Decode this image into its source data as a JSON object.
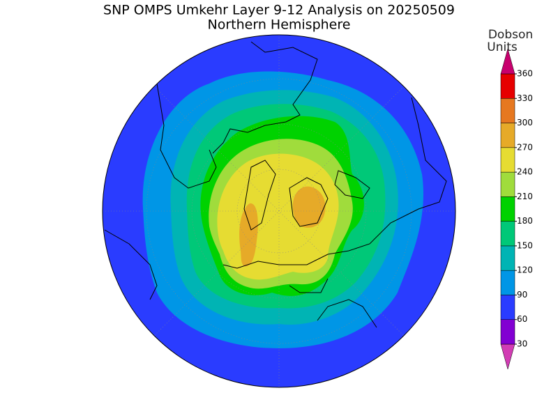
{
  "title": "SNP OMPS Umkehr Layer 9-12 Analysis on 20250509",
  "subtitle": "Northern Hemisphere",
  "colorbar": {
    "label_line1": "Dobson",
    "label_line2": "Units",
    "ticks": [
      30,
      60,
      90,
      120,
      150,
      180,
      210,
      240,
      270,
      300,
      330,
      360
    ],
    "colors": [
      "#d23cb4",
      "#8200d2",
      "#2a3cff",
      "#0096e6",
      "#00b4b4",
      "#00c878",
      "#00d200",
      "#a0dc3c",
      "#e6dc32",
      "#e6aa28",
      "#e67820",
      "#e60000",
      "#c8006e"
    ]
  }
}
